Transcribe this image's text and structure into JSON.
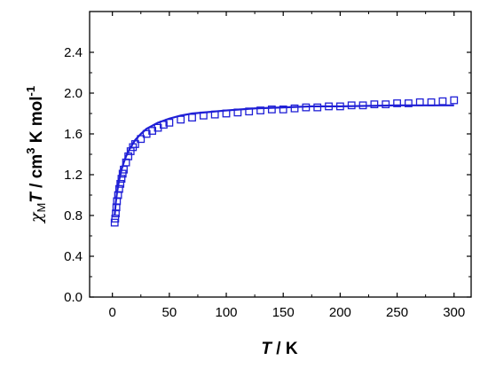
{
  "chart_data": {
    "type": "scatter",
    "xlabel": {
      "var": "T",
      "rest": " / K"
    },
    "ylabel": {
      "sym": "χ",
      "sub": "M",
      "var": "T",
      "rest": " / cm",
      "sup1": "3",
      "rest2": " K mol",
      "sup2": "-1"
    },
    "xlim": [
      -20,
      315
    ],
    "ylim": [
      0.0,
      2.8
    ],
    "xticks": [
      0,
      50,
      100,
      150,
      200,
      250,
      300
    ],
    "yticks": [
      0.0,
      0.4,
      0.8,
      1.2,
      1.6,
      2.0,
      2.4
    ],
    "ytick_labels": [
      "0.0",
      "0.4",
      "0.8",
      "1.2",
      "1.6",
      "2.0",
      "2.4"
    ],
    "grid": false,
    "series": [
      {
        "kind": "markers",
        "marker": "open-square",
        "color": "#1f1fd6",
        "x": [
          2,
          2.5,
          3,
          3.5,
          4,
          5,
          6,
          7,
          8,
          9,
          10,
          12,
          14,
          16,
          18,
          20,
          25,
          30,
          35,
          40,
          45,
          50,
          60,
          70,
          80,
          90,
          100,
          110,
          120,
          130,
          140,
          150,
          160,
          170,
          180,
          190,
          200,
          210,
          220,
          230,
          240,
          250,
          260,
          270,
          280,
          290,
          300
        ],
        "y": [
          0.73,
          0.77,
          0.82,
          0.88,
          0.94,
          1.0,
          1.06,
          1.11,
          1.16,
          1.21,
          1.25,
          1.32,
          1.38,
          1.43,
          1.47,
          1.5,
          1.55,
          1.6,
          1.63,
          1.66,
          1.69,
          1.71,
          1.74,
          1.76,
          1.78,
          1.79,
          1.8,
          1.81,
          1.82,
          1.83,
          1.84,
          1.84,
          1.85,
          1.86,
          1.86,
          1.87,
          1.87,
          1.88,
          1.88,
          1.89,
          1.89,
          1.9,
          1.9,
          1.91,
          1.91,
          1.92,
          1.93
        ]
      },
      {
        "kind": "line",
        "color": "#1f1fd6",
        "x": [
          2,
          3,
          4,
          5,
          6,
          8,
          10,
          12,
          15,
          20,
          25,
          30,
          40,
          50,
          60,
          70,
          80,
          100,
          125,
          150,
          175,
          200,
          250,
          300
        ],
        "y": [
          0.8,
          0.93,
          1.02,
          1.09,
          1.15,
          1.25,
          1.32,
          1.38,
          1.45,
          1.54,
          1.6,
          1.65,
          1.71,
          1.75,
          1.78,
          1.8,
          1.81,
          1.83,
          1.85,
          1.86,
          1.87,
          1.87,
          1.88,
          1.88
        ]
      }
    ]
  }
}
